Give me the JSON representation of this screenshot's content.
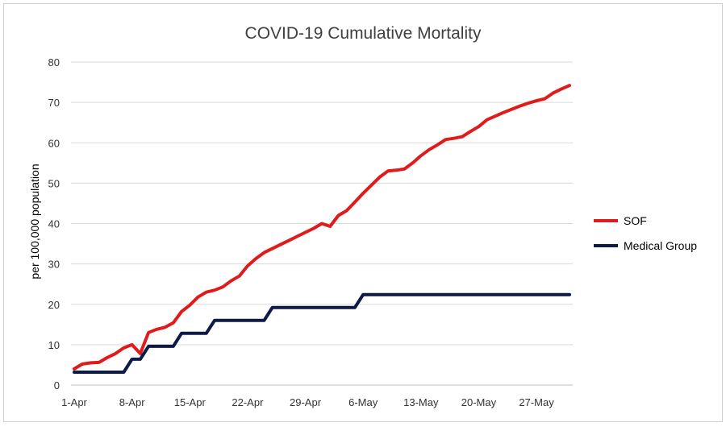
{
  "chart_data": {
    "type": "line",
    "title": "COVID-19 Cumulative Mortality",
    "xlabel": "",
    "ylabel": "per 100,000 population",
    "ylim": [
      0,
      80
    ],
    "yticks": [
      0,
      10,
      20,
      30,
      40,
      50,
      60,
      70,
      80
    ],
    "x_start": "1-Apr",
    "x_end": "31-May",
    "xticks": [
      {
        "day": 0,
        "label": "1-Apr"
      },
      {
        "day": 7,
        "label": "8-Apr"
      },
      {
        "day": 14,
        "label": "15-Apr"
      },
      {
        "day": 21,
        "label": "22-Apr"
      },
      {
        "day": 28,
        "label": "29-Apr"
      },
      {
        "day": 35,
        "label": "6-May"
      },
      {
        "day": 42,
        "label": "13-May"
      },
      {
        "day": 49,
        "label": "20-May"
      },
      {
        "day": 56,
        "label": "27-May"
      }
    ],
    "grid": true,
    "legend_position": "right",
    "series": [
      {
        "name": "SOF",
        "color": "#e01b1b",
        "values": [
          4.0,
          5.2,
          5.5,
          5.6,
          6.8,
          7.8,
          9.2,
          10.0,
          7.8,
          13.0,
          13.8,
          14.3,
          15.4,
          18.2,
          19.8,
          21.8,
          23.0,
          23.5,
          24.3,
          25.8,
          27.0,
          29.5,
          31.3,
          32.8,
          33.8,
          34.8,
          35.8,
          36.8,
          37.8,
          38.8,
          40.0,
          39.3,
          42.0,
          43.2,
          45.3,
          47.5,
          49.5,
          51.5,
          53.0,
          53.2,
          53.5,
          55.0,
          56.8,
          58.3,
          59.5,
          60.8,
          61.1,
          61.5,
          62.8,
          64.0,
          65.7,
          66.6,
          67.5,
          68.3,
          69.1,
          69.8,
          70.4,
          70.9,
          72.3,
          73.3,
          74.2
        ]
      },
      {
        "name": "Medical Group",
        "color": "#0d1a46",
        "values": [
          3.2,
          3.2,
          3.2,
          3.2,
          3.2,
          3.2,
          3.2,
          6.4,
          6.4,
          9.6,
          9.6,
          9.6,
          9.6,
          12.8,
          12.8,
          12.8,
          12.8,
          16.0,
          16.0,
          16.0,
          16.0,
          16.0,
          16.0,
          16.0,
          19.2,
          19.2,
          19.2,
          19.2,
          19.2,
          19.2,
          19.2,
          19.2,
          19.2,
          19.2,
          19.2,
          22.4,
          22.4,
          22.4,
          22.4,
          22.4,
          22.4,
          22.4,
          22.4,
          22.4,
          22.4,
          22.4,
          22.4,
          22.4,
          22.4,
          22.4,
          22.4,
          22.4,
          22.4,
          22.4,
          22.4,
          22.4,
          22.4,
          22.4,
          22.4,
          22.4,
          22.4
        ]
      }
    ]
  }
}
